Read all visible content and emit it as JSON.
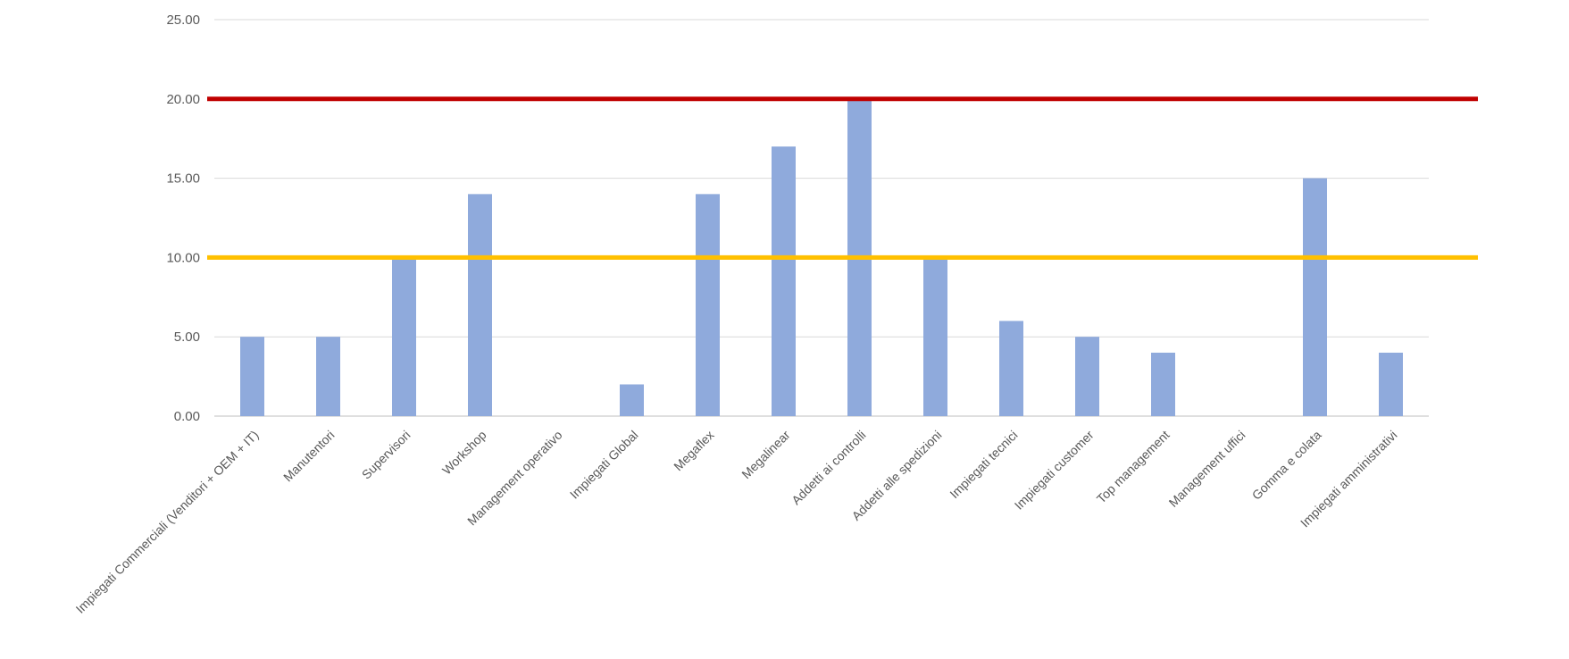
{
  "chart_data": {
    "type": "bar",
    "categories": [
      "Impiegati Commerciali (Venditori + OEM + IT)",
      "Manutentori",
      "Supervisori",
      "Workshop",
      "Management operativo",
      "Impiegati Global",
      "Megaflex",
      "Megalinear",
      "Addetti ai controlli",
      "Addetti alle spedizioni",
      "Impiegati tecnici",
      "Impiegati customer",
      "Top management",
      "Management uffici",
      "Gomma e colata",
      "Impiegati amministrativi"
    ],
    "values": [
      5,
      5,
      10,
      14,
      0,
      2,
      14,
      17,
      20,
      10,
      6,
      5,
      4,
      0,
      15,
      4
    ],
    "yticks": [
      "0.00",
      "5.00",
      "10.00",
      "15.00",
      "20.00",
      "25.00"
    ],
    "ylim": [
      0,
      25
    ],
    "grid": true,
    "reference_lines": [
      {
        "value": 20,
        "color": "#C00000"
      },
      {
        "value": 10,
        "color": "#FFC000"
      }
    ],
    "colors": {
      "bar": "#8FAADC",
      "grid": "#D9D9D9",
      "axis": "#BFBFBF",
      "text": "#595959"
    }
  }
}
